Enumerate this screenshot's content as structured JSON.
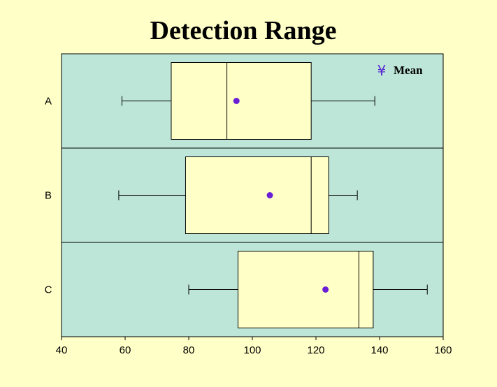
{
  "chart_data": {
    "type": "boxplot",
    "orientation": "horizontal",
    "title": "Detection Range",
    "xlim": [
      40,
      160
    ],
    "xticks": [
      40,
      60,
      80,
      100,
      120,
      140,
      160
    ],
    "categories": [
      "A",
      "B",
      "C"
    ],
    "boxes": [
      {
        "category": "A",
        "min": 59,
        "q1": 74.5,
        "median": 92,
        "q3": 118.5,
        "max": 138.5,
        "mean": 95
      },
      {
        "category": "B",
        "min": 58,
        "q1": 79,
        "median": 118.5,
        "q3": 124,
        "max": 133,
        "mean": 105.5
      },
      {
        "category": "C",
        "min": 80,
        "q1": 95.5,
        "median": 133.5,
        "q3": 138,
        "max": 155,
        "mean": 123
      }
    ],
    "legend": {
      "symbol": "¥",
      "label": "Mean",
      "position": "top-right"
    },
    "grid": false,
    "colors": {
      "background": "#ffffc8",
      "plot_area": "#bde6d9",
      "box_fill": "#ffffc8",
      "mean_marker": "#6a1fd6",
      "legend_symbol": "#5a2ad0"
    }
  }
}
